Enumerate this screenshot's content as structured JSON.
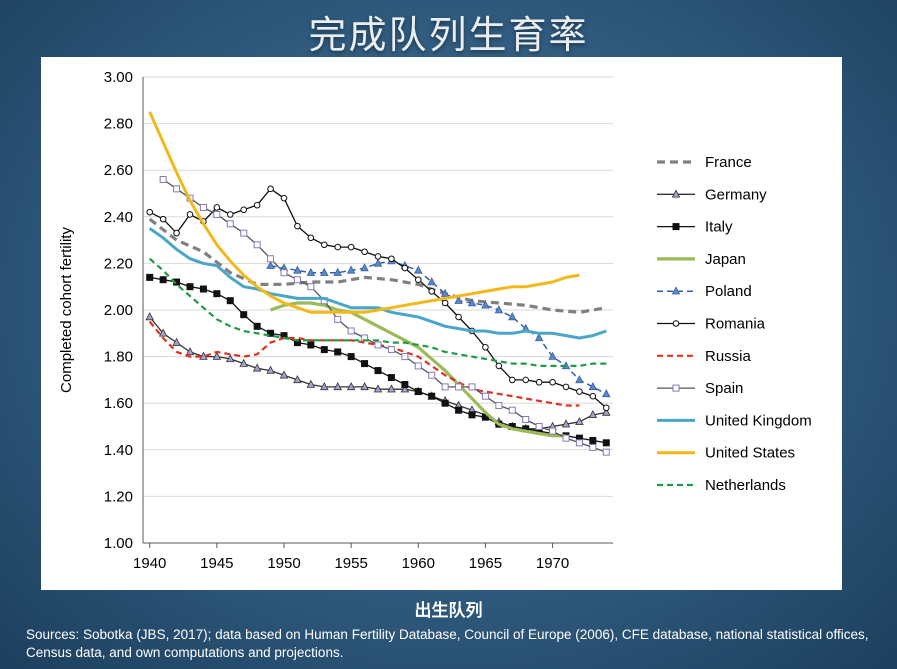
{
  "slide": {
    "title": "完成队列生育率",
    "xlabel": "出生队列",
    "source": "Sources: Sobotka (JBS, 2017); data based on Human Fertility Database, Council of Europe (2006), CFE database, national statistical offices, Census data, and own computations and projections."
  },
  "chart_data": {
    "type": "line",
    "title": "",
    "xlabel": "",
    "ylabel": "Completed cohort fertility",
    "xlim": [
      1939.5,
      1974.5
    ],
    "ylim": [
      1.0,
      3.0
    ],
    "xticks": [
      1940,
      1945,
      1950,
      1955,
      1960,
      1965,
      1970
    ],
    "yticks": [
      1.0,
      1.2,
      1.4,
      1.6,
      1.8,
      2.0,
      2.2,
      2.4,
      2.6,
      2.8,
      3.0
    ],
    "ytick_labels": [
      "1.00",
      "1.20",
      "1.40",
      "1.60",
      "1.80",
      "2.00",
      "2.20",
      "2.40",
      "2.60",
      "2.80",
      "3.00"
    ],
    "grid": "horizontal",
    "legend_position": "right",
    "series": [
      {
        "name": "France",
        "color": "#808080",
        "dash": "8,5",
        "width": 3.2,
        "marker": "none",
        "x": [
          1940,
          1942,
          1944,
          1946,
          1948,
          1950,
          1952,
          1954,
          1956,
          1958,
          1960,
          1962,
          1964,
          1966,
          1968,
          1970,
          1972,
          1974
        ],
        "y": [
          2.39,
          2.3,
          2.25,
          2.16,
          2.11,
          2.11,
          2.12,
          2.12,
          2.14,
          2.13,
          2.11,
          2.07,
          2.04,
          2.03,
          2.02,
          2.0,
          1.99,
          2.01
        ]
      },
      {
        "name": "Germany",
        "color": "#333333",
        "dash": "",
        "width": 1.3,
        "marker": "triangle",
        "mfill": "#a79fd0",
        "x": [
          1940,
          1941,
          1942,
          1943,
          1944,
          1945,
          1946,
          1947,
          1948,
          1949,
          1950,
          1951,
          1952,
          1953,
          1954,
          1955,
          1956,
          1957,
          1958,
          1959,
          1960,
          1961,
          1962,
          1963,
          1964,
          1965,
          1966,
          1967,
          1968,
          1969,
          1970,
          1971,
          1972,
          1973,
          1974
        ],
        "y": [
          1.97,
          1.9,
          1.86,
          1.82,
          1.8,
          1.8,
          1.79,
          1.77,
          1.75,
          1.74,
          1.72,
          1.7,
          1.68,
          1.67,
          1.67,
          1.67,
          1.67,
          1.66,
          1.66,
          1.66,
          1.65,
          1.63,
          1.61,
          1.59,
          1.57,
          1.55,
          1.52,
          1.5,
          1.49,
          1.49,
          1.5,
          1.51,
          1.52,
          1.55,
          1.56
        ]
      },
      {
        "name": "Italy",
        "color": "#111111",
        "dash": "",
        "width": 1.3,
        "marker": "square",
        "mfill": "#111111",
        "x": [
          1940,
          1941,
          1942,
          1943,
          1944,
          1945,
          1946,
          1947,
          1948,
          1949,
          1950,
          1951,
          1952,
          1953,
          1954,
          1955,
          1956,
          1957,
          1958,
          1959,
          1960,
          1961,
          1962,
          1963,
          1964,
          1965,
          1966,
          1967,
          1968,
          1969,
          1970,
          1971,
          1972,
          1973,
          1974
        ],
        "y": [
          2.14,
          2.13,
          2.12,
          2.1,
          2.09,
          2.07,
          2.04,
          1.98,
          1.93,
          1.9,
          1.89,
          1.86,
          1.85,
          1.83,
          1.82,
          1.8,
          1.77,
          1.74,
          1.71,
          1.68,
          1.65,
          1.63,
          1.6,
          1.57,
          1.55,
          1.54,
          1.51,
          1.5,
          1.49,
          1.48,
          1.47,
          1.46,
          1.45,
          1.44,
          1.43
        ]
      },
      {
        "name": "Japan",
        "color": "#9bbb59",
        "dash": "",
        "width": 3.2,
        "marker": "none",
        "x": [
          1949,
          1950,
          1951,
          1952,
          1953,
          1954,
          1955,
          1956,
          1957,
          1958,
          1959,
          1960,
          1961,
          1962,
          1963,
          1964,
          1965,
          1966,
          1967,
          1968,
          1969,
          1970,
          1971
        ],
        "y": [
          2.0,
          2.02,
          2.03,
          2.03,
          2.02,
          2.0,
          1.99,
          1.96,
          1.93,
          1.9,
          1.87,
          1.84,
          1.79,
          1.74,
          1.68,
          1.62,
          1.56,
          1.51,
          1.49,
          1.48,
          1.47,
          1.46,
          1.46
        ]
      },
      {
        "name": "Poland",
        "color": "#3560a8",
        "dash": "6,4",
        "width": 1.5,
        "marker": "triangle",
        "mfill": "#5f86c4",
        "x": [
          1949,
          1950,
          1951,
          1952,
          1953,
          1954,
          1955,
          1956,
          1957,
          1958,
          1959,
          1960,
          1961,
          1962,
          1963,
          1964,
          1965,
          1966,
          1967,
          1968,
          1969,
          1970,
          1971,
          1972,
          1973,
          1974
        ],
        "y": [
          2.19,
          2.18,
          2.17,
          2.16,
          2.16,
          2.16,
          2.17,
          2.18,
          2.2,
          2.21,
          2.19,
          2.17,
          2.12,
          2.07,
          2.04,
          2.03,
          2.02,
          2.0,
          1.97,
          1.92,
          1.88,
          1.8,
          1.76,
          1.7,
          1.67,
          1.64
        ]
      },
      {
        "name": "Romania",
        "color": "#111111",
        "dash": "",
        "width": 1.3,
        "marker": "circle",
        "mfill": "#ffffff",
        "x": [
          1940,
          1941,
          1942,
          1943,
          1944,
          1945,
          1946,
          1947,
          1948,
          1949,
          1950,
          1951,
          1952,
          1953,
          1954,
          1955,
          1956,
          1957,
          1958,
          1959,
          1960,
          1961,
          1962,
          1963,
          1964,
          1965,
          1966,
          1967,
          1968,
          1969,
          1970,
          1971,
          1972,
          1973,
          1974
        ],
        "y": [
          2.42,
          2.39,
          2.33,
          2.41,
          2.38,
          2.44,
          2.41,
          2.43,
          2.45,
          2.52,
          2.48,
          2.36,
          2.31,
          2.28,
          2.27,
          2.27,
          2.25,
          2.23,
          2.22,
          2.18,
          2.13,
          2.08,
          2.03,
          1.97,
          1.91,
          1.84,
          1.76,
          1.7,
          1.7,
          1.69,
          1.69,
          1.67,
          1.65,
          1.63,
          1.58
        ]
      },
      {
        "name": "Russia",
        "color": "#e03020",
        "dash": "6,4",
        "width": 2.2,
        "marker": "none",
        "x": [
          1940,
          1941,
          1942,
          1943,
          1944,
          1945,
          1946,
          1947,
          1948,
          1949,
          1950,
          1951,
          1952,
          1953,
          1954,
          1955,
          1956,
          1957,
          1958,
          1959,
          1960,
          1961,
          1962,
          1963,
          1964,
          1965,
          1966,
          1967,
          1968,
          1969,
          1970,
          1971,
          1972
        ],
        "y": [
          1.95,
          1.88,
          1.82,
          1.8,
          1.8,
          1.82,
          1.81,
          1.8,
          1.81,
          1.86,
          1.88,
          1.88,
          1.87,
          1.87,
          1.87,
          1.87,
          1.86,
          1.85,
          1.84,
          1.82,
          1.8,
          1.76,
          1.72,
          1.69,
          1.66,
          1.65,
          1.64,
          1.63,
          1.62,
          1.61,
          1.6,
          1.59,
          1.59
        ]
      },
      {
        "name": "Spain",
        "color": "#555555",
        "dash": "",
        "width": 1.3,
        "marker": "square",
        "mfill": "#ffffff",
        "mstroke": "#8a78b8",
        "x": [
          1941,
          1942,
          1943,
          1944,
          1945,
          1946,
          1947,
          1948,
          1949,
          1950,
          1951,
          1952,
          1953,
          1954,
          1955,
          1956,
          1957,
          1958,
          1959,
          1960,
          1961,
          1962,
          1963,
          1964,
          1965,
          1966,
          1967,
          1968,
          1969,
          1970,
          1971,
          1972,
          1973,
          1974
        ],
        "y": [
          2.56,
          2.52,
          2.48,
          2.44,
          2.41,
          2.37,
          2.33,
          2.28,
          2.22,
          2.16,
          2.13,
          2.1,
          2.04,
          1.96,
          1.91,
          1.88,
          1.85,
          1.83,
          1.8,
          1.76,
          1.72,
          1.67,
          1.67,
          1.67,
          1.63,
          1.59,
          1.57,
          1.53,
          1.5,
          1.48,
          1.45,
          1.43,
          1.41,
          1.39
        ]
      },
      {
        "name": "United Kingdom",
        "color": "#4aa6c8",
        "dash": "",
        "width": 3.0,
        "marker": "none",
        "x": [
          1940,
          1941,
          1942,
          1943,
          1944,
          1945,
          1946,
          1947,
          1948,
          1949,
          1950,
          1951,
          1952,
          1953,
          1954,
          1955,
          1956,
          1957,
          1958,
          1959,
          1960,
          1961,
          1962,
          1963,
          1964,
          1965,
          1966,
          1967,
          1968,
          1969,
          1970,
          1971,
          1972,
          1973,
          1974
        ],
        "y": [
          2.35,
          2.31,
          2.26,
          2.22,
          2.2,
          2.19,
          2.14,
          2.1,
          2.09,
          2.07,
          2.06,
          2.05,
          2.05,
          2.05,
          2.03,
          2.01,
          2.01,
          2.01,
          1.99,
          1.98,
          1.97,
          1.95,
          1.93,
          1.92,
          1.91,
          1.91,
          1.9,
          1.9,
          1.91,
          1.9,
          1.9,
          1.89,
          1.88,
          1.89,
          1.91
        ]
      },
      {
        "name": "United States",
        "color": "#f2b81a",
        "dash": "",
        "width": 3.0,
        "marker": "none",
        "x": [
          1940,
          1941,
          1942,
          1943,
          1944,
          1945,
          1946,
          1947,
          1948,
          1949,
          1950,
          1951,
          1952,
          1953,
          1954,
          1955,
          1956,
          1957,
          1958,
          1959,
          1960,
          1961,
          1962,
          1963,
          1964,
          1965,
          1966,
          1967,
          1968,
          1969,
          1970,
          1971,
          1972
        ],
        "y": [
          2.85,
          2.72,
          2.59,
          2.47,
          2.37,
          2.28,
          2.21,
          2.15,
          2.1,
          2.06,
          2.03,
          2.01,
          1.99,
          1.99,
          1.99,
          1.99,
          1.99,
          2.0,
          2.01,
          2.02,
          2.03,
          2.04,
          2.05,
          2.06,
          2.07,
          2.08,
          2.09,
          2.1,
          2.1,
          2.11,
          2.12,
          2.14,
          2.15
        ]
      },
      {
        "name": "Netherlands",
        "color": "#1f9a48",
        "dash": "6,4",
        "width": 2.2,
        "marker": "none",
        "x": [
          1940,
          1941,
          1942,
          1943,
          1944,
          1945,
          1946,
          1947,
          1948,
          1949,
          1950,
          1951,
          1952,
          1953,
          1954,
          1955,
          1956,
          1957,
          1958,
          1959,
          1960,
          1961,
          1962,
          1963,
          1964,
          1965,
          1966,
          1967,
          1968,
          1969,
          1970,
          1971,
          1972,
          1973,
          1974
        ],
        "y": [
          2.22,
          2.17,
          2.11,
          2.06,
          2.01,
          1.96,
          1.93,
          1.91,
          1.9,
          1.89,
          1.88,
          1.87,
          1.87,
          1.87,
          1.87,
          1.87,
          1.87,
          1.87,
          1.86,
          1.86,
          1.85,
          1.84,
          1.82,
          1.81,
          1.8,
          1.79,
          1.78,
          1.77,
          1.77,
          1.76,
          1.76,
          1.76,
          1.76,
          1.77,
          1.77
        ]
      }
    ]
  }
}
